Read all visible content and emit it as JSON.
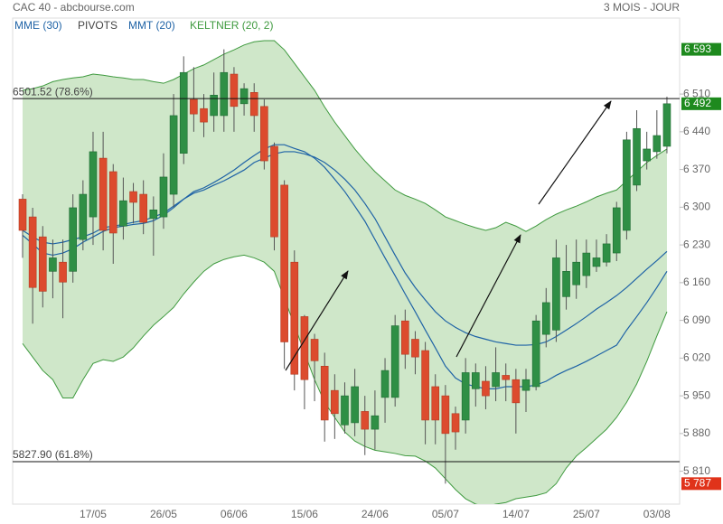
{
  "chart_data": {
    "type": "candlestick",
    "title": "CAC 40 - abcbourse.com",
    "subtitle": "3 MOIS - JOUR",
    "categories": [
      null,
      null,
      null,
      null,
      null,
      null,
      null,
      "17/05",
      null,
      null,
      null,
      null,
      null,
      null,
      "26/05",
      null,
      null,
      null,
      null,
      null,
      null,
      "06/06",
      null,
      null,
      null,
      null,
      null,
      null,
      "15/06",
      null,
      null,
      null,
      null,
      null,
      null,
      "24/06",
      null,
      null,
      null,
      null,
      null,
      null,
      "05/07",
      null,
      null,
      null,
      null,
      null,
      null,
      "14/07",
      null,
      null,
      null,
      null,
      null,
      null,
      "25/07",
      null,
      null,
      null,
      null,
      null,
      null,
      "03/08",
      null
    ],
    "candles": {
      "open": [
        6315,
        6282,
        6245,
        6181,
        6198,
        6181,
        6240,
        6282,
        6391,
        6366,
        6265,
        6329,
        6324,
        6279,
        6282,
        6324,
        6400,
        6500,
        6483,
        6470,
        6470,
        6547,
        6492,
        6513,
        6487,
        6413,
        6341,
        6198,
        6097,
        6055,
        6005,
        5960,
        5896,
        5900,
        5921,
        5888,
        5947,
        5947,
        6089,
        6055,
        6034,
        5967,
        5950,
        5917,
        5905,
        5963,
        5977,
        5967,
        5988,
        5980,
        5960,
        5967,
        6064,
        6072,
        6134,
        6156,
        6173,
        6190,
        6198,
        6215,
        6257,
        6341,
        6386,
        6403,
        6413
      ],
      "high": [
        6324,
        6299,
        6265,
        6240,
        6240,
        6324,
        6350,
        6440,
        6440,
        6380,
        6355,
        6345,
        6350,
        6320,
        6400,
        6510,
        6580,
        6560,
        6510,
        6550,
        6593,
        6560,
        6530,
        6530,
        6500,
        6420,
        6350,
        6220,
        6100,
        6065,
        6030,
        5990,
        5975,
        6000,
        5950,
        5960,
        6020,
        6100,
        6110,
        6070,
        6050,
        5990,
        5970,
        5930,
        6020,
        6010,
        6005,
        6040,
        6010,
        6000,
        6000,
        6100,
        6150,
        6240,
        6230,
        6240,
        6240,
        6240,
        6250,
        6310,
        6440,
        6480,
        6440,
        6480,
        6505
      ],
      "low": [
        6206,
        6084,
        6114,
        6131,
        6094,
        6160,
        6220,
        6230,
        6220,
        6195,
        6240,
        6270,
        6250,
        6210,
        6260,
        6300,
        6380,
        6440,
        6430,
        6440,
        6440,
        6440,
        6470,
        6440,
        6370,
        6220,
        6000,
        5960,
        5925,
        5940,
        5865,
        5870,
        5880,
        5875,
        5840,
        5850,
        5900,
        5930,
        6000,
        5990,
        5860,
        5860,
        5787,
        5850,
        5880,
        5930,
        5925,
        5940,
        5940,
        5880,
        5920,
        5960,
        6040,
        6050,
        6110,
        6130,
        6150,
        6180,
        6190,
        6200,
        6240,
        6330,
        6370,
        6390,
        6400
      ],
      "close": [
        6257,
        6151,
        6144,
        6206,
        6161,
        6299,
        6324,
        6403,
        6257,
        6252,
        6312,
        6309,
        6272,
        6295,
        6356,
        6470,
        6550,
        6473,
        6458,
        6508,
        6550,
        6487,
        6520,
        6470,
        6386,
        6245,
        6050,
        5990,
        5980,
        6015,
        5905,
        5917,
        5950,
        5967,
        5888,
        5913,
        5997,
        6080,
        6027,
        6022,
        5905,
        5905,
        5880,
        5883,
        5993,
        5993,
        5950,
        5993,
        5980,
        5937,
        5980,
        6089,
        6123,
        6206,
        6181,
        6198,
        6215,
        6206,
        6232,
        6299,
        6425,
        6446,
        6408,
        6433,
        6492
      ],
      "up_color": "#2f8f45",
      "down_color": "#dc4b2e"
    },
    "series": [
      {
        "name": "MME (30)",
        "color": "#1f63a6",
        "values": [
          6257,
          6245,
          6235,
          6232,
          6235,
          6240,
          6245,
          6252,
          6262,
          6265,
          6268,
          6272,
          6275,
          6282,
          6289,
          6302,
          6315,
          6326,
          6332,
          6341,
          6349,
          6359,
          6369,
          6383,
          6391,
          6399,
          6403,
          6403,
          6399,
          6393,
          6383,
          6369,
          6352,
          6332,
          6307,
          6279,
          6245,
          6211,
          6178,
          6151,
          6128,
          6106,
          6089,
          6077,
          6067,
          6060,
          6055,
          6050,
          6047,
          6044,
          6044,
          6045,
          6050,
          6060,
          6072,
          6084,
          6097,
          6111,
          6123,
          6136,
          6151,
          6168,
          6185,
          6201,
          6218
        ]
      },
      {
        "name": "MMT (20)",
        "color": "#1f63a6",
        "values": [
          6248,
          6232,
          6215,
          6211,
          6215,
          6223,
          6235,
          6245,
          6255,
          6262,
          6265,
          6268,
          6270,
          6275,
          6285,
          6299,
          6315,
          6329,
          6336,
          6346,
          6357,
          6369,
          6383,
          6396,
          6408,
          6416,
          6416,
          6409,
          6403,
          6391,
          6374,
          6352,
          6329,
          6302,
          6274,
          6240,
          6206,
          6173,
          6139,
          6106,
          6072,
          6039,
          6005,
          5983,
          5972,
          5967,
          5963,
          5963,
          5967,
          5967,
          5967,
          5970,
          5977,
          5988,
          5997,
          6005,
          6014,
          6024,
          6034,
          6044,
          6072,
          6097,
          6123,
          6151,
          6181
        ]
      }
    ],
    "keltner": {
      "name": "KELTNER (20, 2)",
      "color": "#3f9a3f",
      "fill": "#cfe7c9",
      "upper": [
        6517,
        6520,
        6525,
        6533,
        6537,
        6540,
        6542,
        6547,
        6545,
        6542,
        6540,
        6537,
        6537,
        6533,
        6530,
        6537,
        6547,
        6557,
        6564,
        6574,
        6584,
        6592,
        6601,
        6607,
        6609,
        6609,
        6592,
        6567,
        6542,
        6517,
        6486,
        6458,
        6433,
        6408,
        6386,
        6366,
        6349,
        6332,
        6322,
        6315,
        6307,
        6295,
        6282,
        6275,
        6268,
        6262,
        6257,
        6262,
        6272,
        6265,
        6255,
        6265,
        6277,
        6287,
        6295,
        6302,
        6310,
        6319,
        6326,
        6332,
        6349,
        6366,
        6383,
        6396,
        6408
      ],
      "lower": [
        6047,
        6022,
        5997,
        5980,
        5946,
        5946,
        5980,
        6010,
        6017,
        6014,
        6022,
        6039,
        6061,
        6081,
        6097,
        6114,
        6139,
        6161,
        6181,
        6195,
        6203,
        6208,
        6211,
        6206,
        6198,
        6181,
        6131,
        6081,
        6030,
        5980,
        5938,
        5910,
        5883,
        5866,
        5856,
        5849,
        5846,
        5843,
        5839,
        5838,
        5829,
        5816,
        5796,
        5776,
        5759,
        5749,
        5745,
        5749,
        5752,
        5759,
        5762,
        5765,
        5770,
        5787,
        5816,
        5838,
        5854,
        5871,
        5888,
        5910,
        5938,
        5972,
        6014,
        6061,
        6106
      ]
    },
    "pivots": {
      "name": "PIVOTS",
      "color": "#444444"
    },
    "hlines": [
      {
        "value": 6501.52,
        "label": "6501.52  (78.6%)"
      },
      {
        "value": 5827.9,
        "label": "5827.90  (61.8%)"
      }
    ],
    "price_tags": [
      {
        "value": 6593,
        "label": "6 593",
        "color": "#1e8a1e"
      },
      {
        "value": 6492,
        "label": "6 492",
        "color": "#1e8a1e"
      },
      {
        "value": 5787,
        "label": "5 787",
        "color": "#e0331a"
      }
    ],
    "ylim": [
      5749,
      6651
    ],
    "yticks": [
      {
        "value": 6510,
        "label": "6 510"
      },
      {
        "value": 6440,
        "label": "6 440"
      },
      {
        "value": 6370,
        "label": "6 370"
      },
      {
        "value": 6300,
        "label": "6 300"
      },
      {
        "value": 6230,
        "label": "6 230"
      },
      {
        "value": 6160,
        "label": "6 160"
      },
      {
        "value": 6090,
        "label": "6 090"
      },
      {
        "value": 6020,
        "label": "6 020"
      },
      {
        "value": 5950,
        "label": "5 950"
      },
      {
        "value": 5880,
        "label": "5 880"
      },
      {
        "value": 5810,
        "label": "5 810"
      }
    ]
  }
}
